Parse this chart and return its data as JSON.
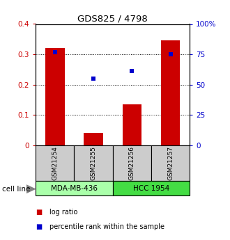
{
  "title": "GDS825 / 4798",
  "samples": [
    "GSM21254",
    "GSM21255",
    "GSM21256",
    "GSM21257"
  ],
  "log_ratio": [
    0.32,
    0.04,
    0.135,
    0.345
  ],
  "percentile_rank": [
    0.77,
    0.55,
    0.61,
    0.75
  ],
  "bar_color": "#cc0000",
  "dot_color": "#0000cc",
  "ylim_left": [
    0,
    0.4
  ],
  "ylim_right": [
    0,
    1.0
  ],
  "yticks_left": [
    0,
    0.1,
    0.2,
    0.3,
    0.4
  ],
  "yticks_right": [
    0,
    0.25,
    0.5,
    0.75,
    1.0
  ],
  "ytick_labels_right": [
    "0",
    "25",
    "50",
    "75",
    "100%"
  ],
  "ytick_labels_left": [
    "0",
    "0.1",
    "0.2",
    "0.3",
    "0.4"
  ],
  "cell_lines": [
    {
      "label": "MDA-MB-436",
      "samples": [
        0,
        1
      ],
      "color": "#aaffaa"
    },
    {
      "label": "HCC 1954",
      "samples": [
        2,
        3
      ],
      "color": "#44dd44"
    }
  ],
  "cell_line_label": "cell line",
  "legend_items": [
    {
      "label": "log ratio",
      "color": "#cc0000"
    },
    {
      "label": "percentile rank within the sample",
      "color": "#0000cc"
    }
  ],
  "sample_box_color": "#cccccc",
  "bar_width": 0.5,
  "fig_width": 3.3,
  "fig_height": 3.45,
  "dpi": 100
}
